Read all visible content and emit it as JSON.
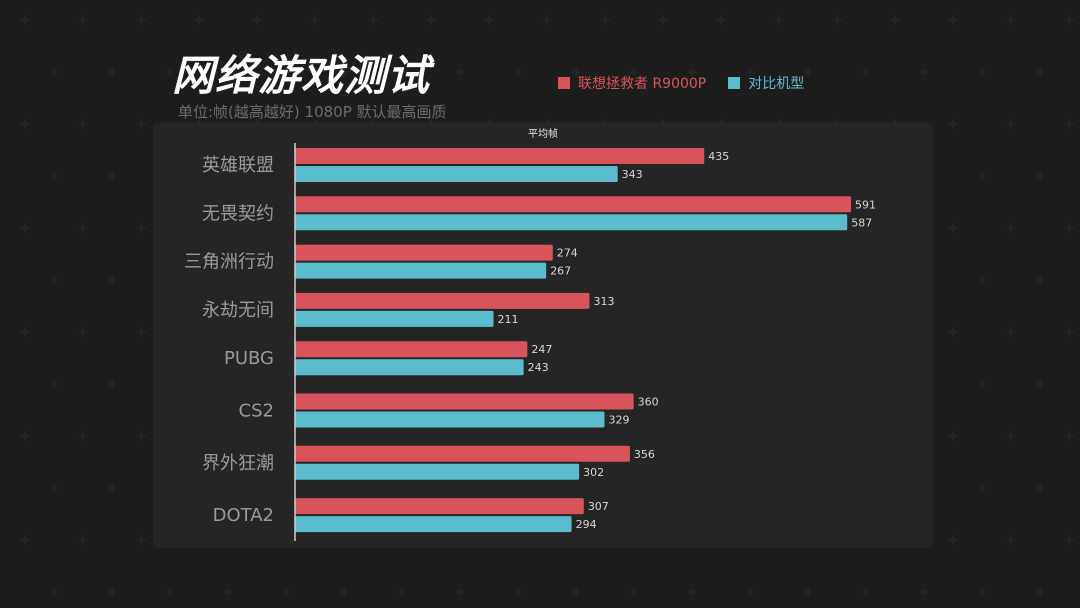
{
  "header": {
    "title": "网络游戏测试",
    "subtitle": "单位:帧(越高越好)  1080P 默认最高画质"
  },
  "colors": {
    "series_a": "#d9545a",
    "series_b": "#5bbcce",
    "label": "#9a9a9c",
    "value": "#d8d8d8",
    "axis": "#d0d0d0"
  },
  "chart_data": {
    "type": "bar",
    "orientation": "horizontal",
    "title": "平均帧",
    "categories": [
      "英雄联盟",
      "无畏契约",
      "三角洲行动",
      "永劫无间",
      "PUBG",
      "CS2",
      "界外狂潮",
      "DOTA2"
    ],
    "series": [
      {
        "name": "联想拯救者 R9000P",
        "values": [
          435,
          591,
          274,
          313,
          247,
          360,
          356,
          307
        ]
      },
      {
        "name": "对比机型",
        "values": [
          343,
          587,
          267,
          211,
          243,
          329,
          302,
          294
        ]
      }
    ],
    "xlim": [
      0,
      600
    ],
    "legend": "top-right",
    "grid": false
  }
}
